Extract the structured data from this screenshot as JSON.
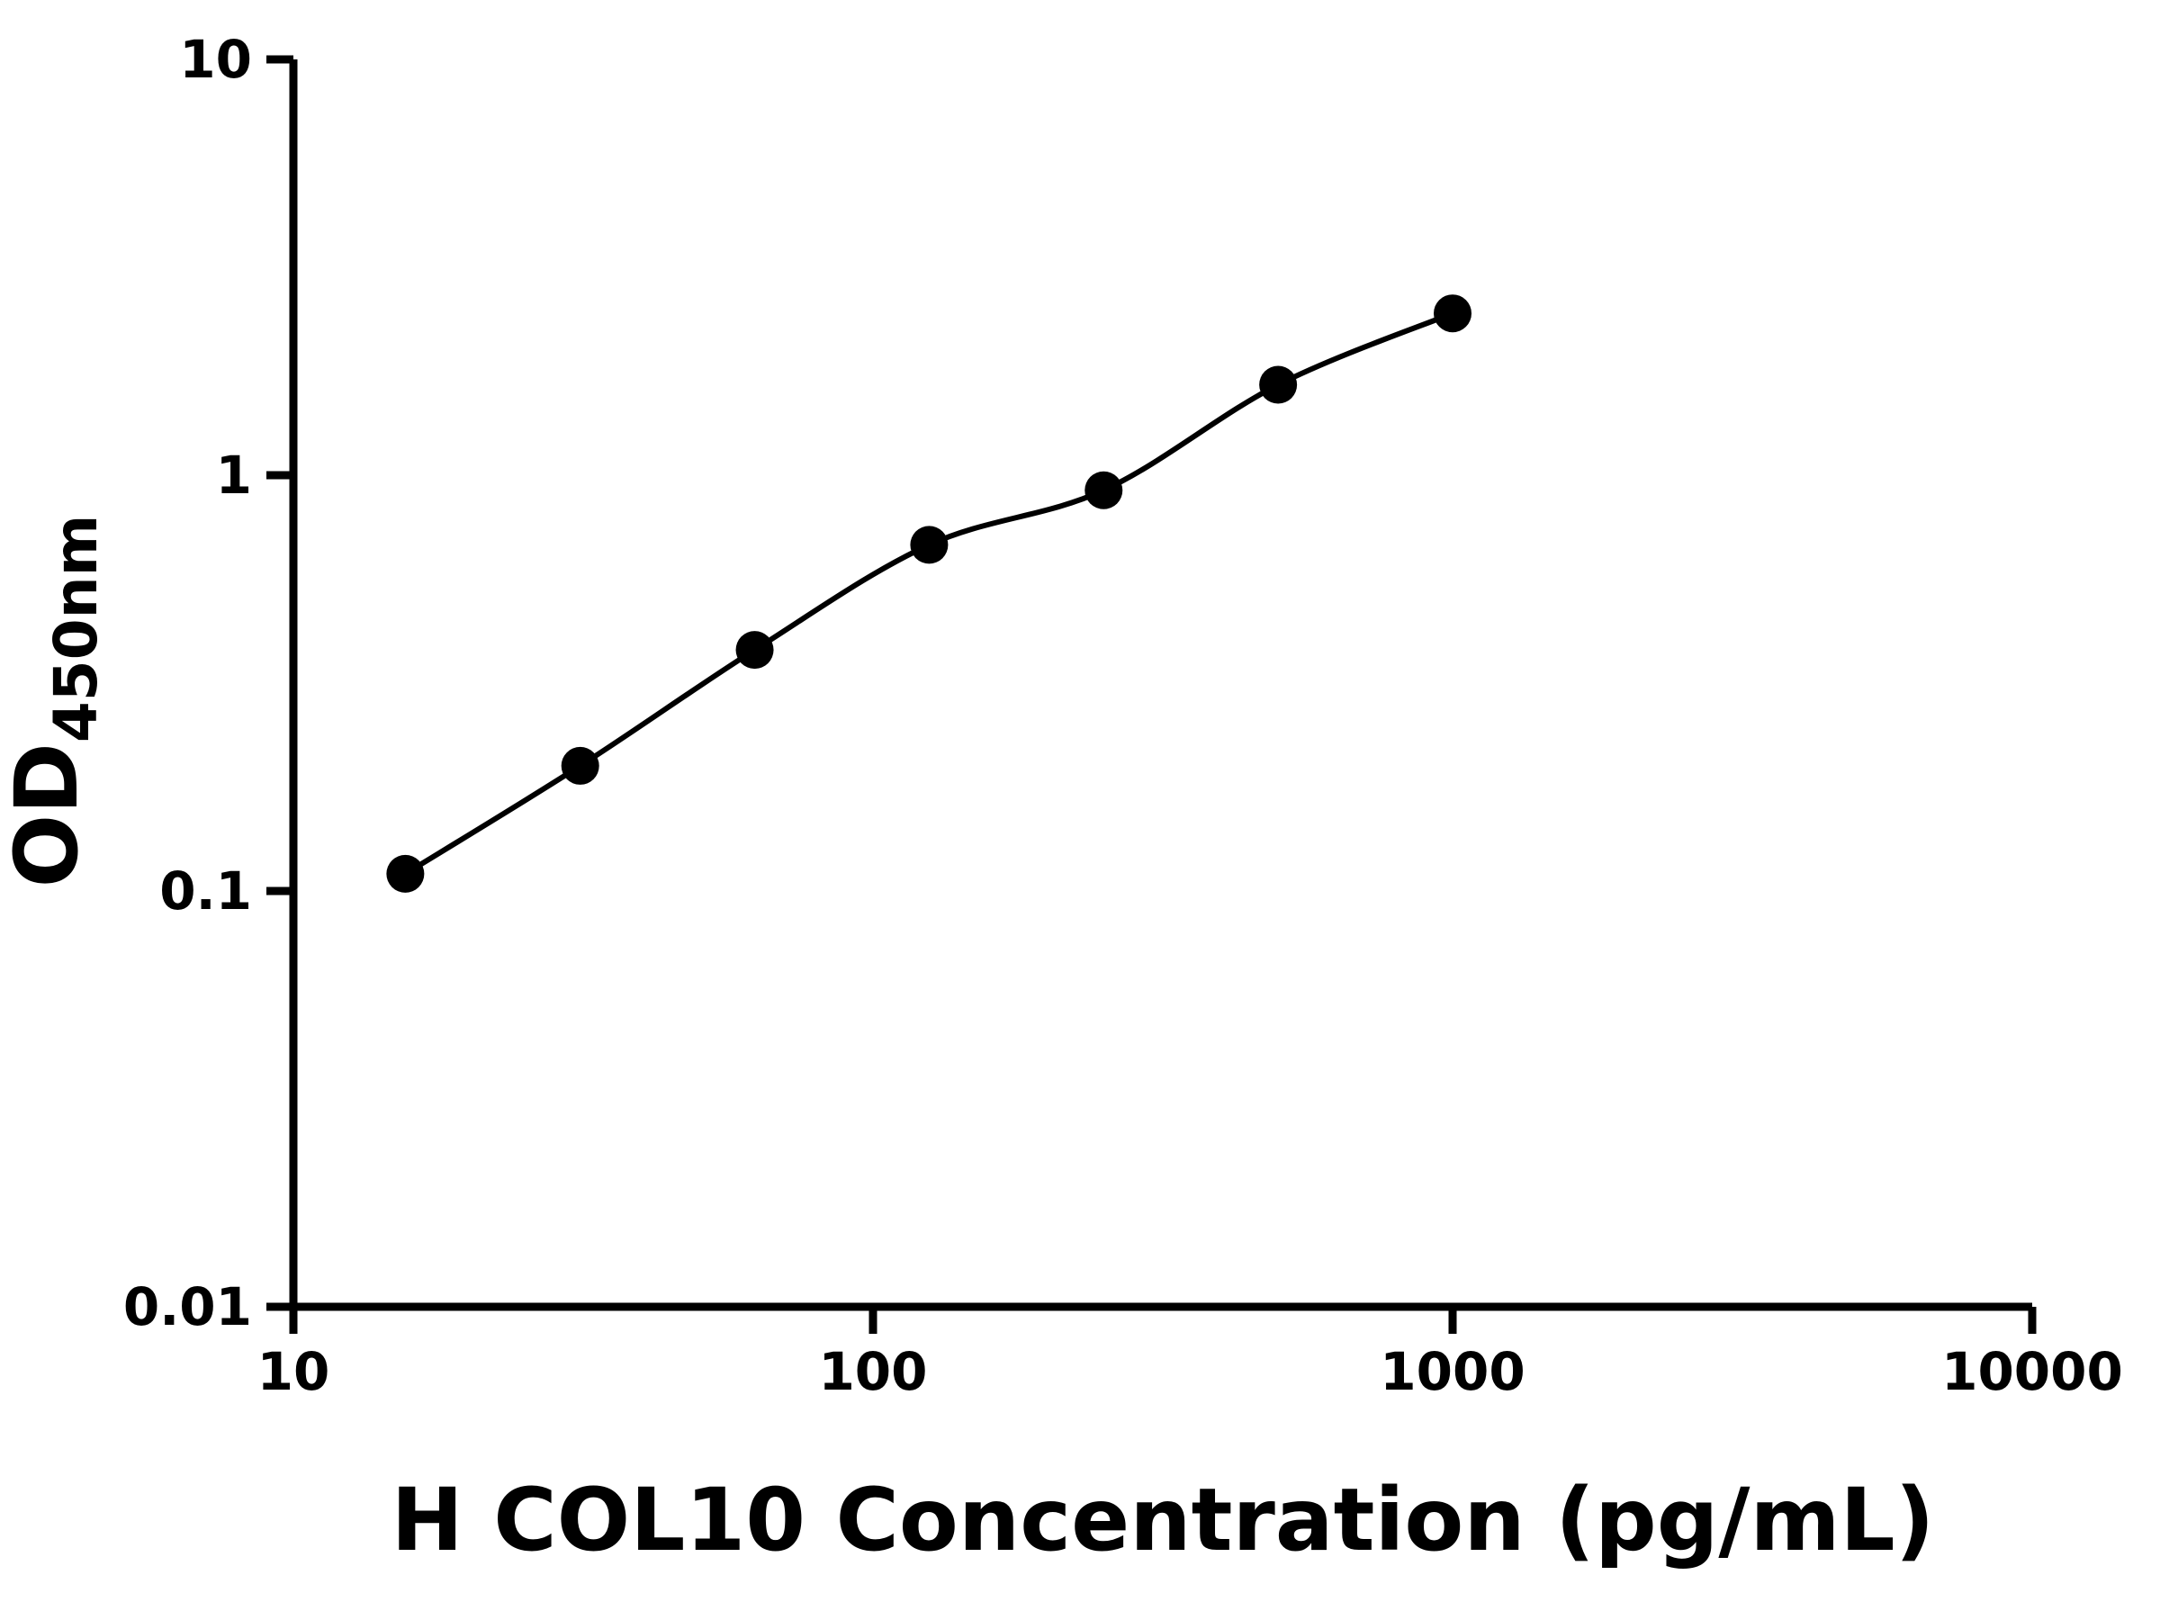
{
  "chart_data": {
    "type": "scatter",
    "curve": "smooth",
    "x": [
      15.6,
      31.25,
      62.5,
      125,
      250,
      500,
      1000
    ],
    "y": [
      0.11,
      0.2,
      0.38,
      0.68,
      0.92,
      1.65,
      2.45
    ],
    "xlabel": "H COL10 Concentration (pg/mL)",
    "ylabel_main": "OD",
    "ylabel_sub": "450nm",
    "xscale": "log",
    "yscale": "log",
    "xlim": [
      10,
      10000
    ],
    "ylim": [
      0.01,
      10
    ],
    "x_ticks": [
      {
        "value": 10,
        "label": "10"
      },
      {
        "value": 100,
        "label": "100"
      },
      {
        "value": 1000,
        "label": "1000"
      },
      {
        "value": 10000,
        "label": "10000"
      }
    ],
    "y_ticks": [
      {
        "value": 10,
        "label": "10"
      },
      {
        "value": 1,
        "label": "1"
      },
      {
        "value": 0.1,
        "label": "0.1"
      },
      {
        "value": 0.01,
        "label": "0.01"
      }
    ],
    "grid": false,
    "legend": false,
    "marker_color": "#000000",
    "line_color": "#000000",
    "axis_color": "#000000",
    "background": "#ffffff"
  }
}
